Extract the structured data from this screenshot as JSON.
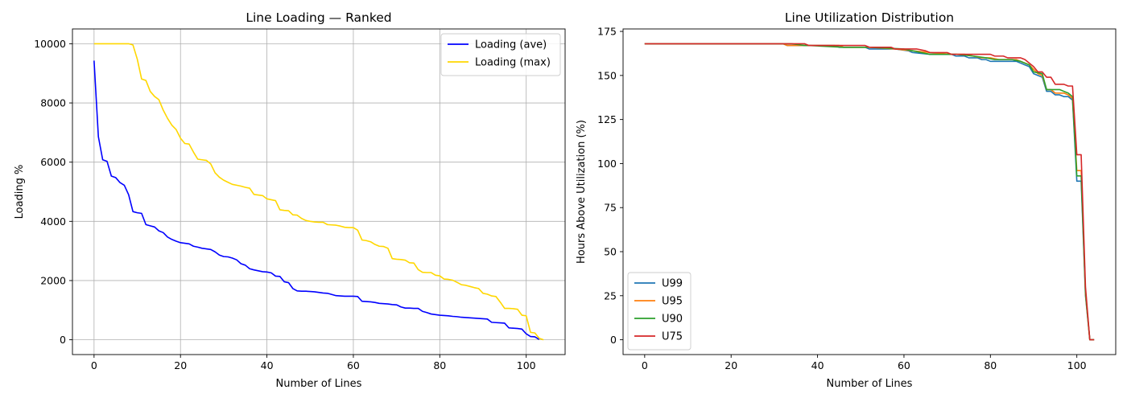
{
  "chart_data": [
    {
      "type": "line",
      "title": "Line Loading — Ranked",
      "xlabel": "Number of Lines",
      "ylabel": "Loading %",
      "xlim": [
        -5,
        109
      ],
      "ylim": [
        -500,
        10500
      ],
      "xticks": [
        0,
        20,
        40,
        60,
        80,
        100
      ],
      "yticks": [
        0,
        2000,
        4000,
        6000,
        8000,
        10000
      ],
      "grid": true,
      "legend_position": "top-right",
      "series": [
        {
          "name": "Loading (ave)",
          "color": "#0000ff",
          "x": [
            0,
            1,
            2,
            3,
            4,
            5,
            6,
            7,
            8,
            9,
            10,
            11,
            12,
            13,
            14,
            15,
            16,
            17,
            18,
            19,
            20,
            21,
            22,
            23,
            24,
            25,
            26,
            27,
            28,
            29,
            30,
            31,
            32,
            33,
            34,
            35,
            36,
            37,
            38,
            39,
            40,
            41,
            42,
            43,
            44,
            45,
            46,
            47,
            48,
            49,
            50,
            51,
            52,
            53,
            54,
            55,
            56,
            57,
            58,
            59,
            60,
            61,
            62,
            63,
            64,
            65,
            66,
            67,
            68,
            69,
            70,
            71,
            72,
            73,
            74,
            75,
            76,
            77,
            78,
            79,
            80,
            81,
            82,
            83,
            84,
            85,
            86,
            87,
            88,
            89,
            90,
            91,
            92,
            93,
            94,
            95,
            96,
            97,
            98,
            99,
            100,
            101,
            102,
            103
          ],
          "values": [
            9430,
            6860,
            6080,
            6030,
            5530,
            5480,
            5310,
            5220,
            4900,
            4330,
            4290,
            4270,
            3890,
            3850,
            3810,
            3680,
            3620,
            3470,
            3390,
            3330,
            3280,
            3260,
            3240,
            3160,
            3130,
            3090,
            3070,
            3050,
            2970,
            2860,
            2810,
            2800,
            2760,
            2700,
            2570,
            2520,
            2400,
            2360,
            2330,
            2300,
            2290,
            2260,
            2150,
            2140,
            1960,
            1930,
            1730,
            1650,
            1640,
            1640,
            1630,
            1620,
            1600,
            1580,
            1570,
            1530,
            1490,
            1480,
            1470,
            1470,
            1470,
            1460,
            1300,
            1290,
            1280,
            1260,
            1230,
            1220,
            1210,
            1190,
            1180,
            1110,
            1070,
            1070,
            1060,
            1060,
            960,
            920,
            870,
            850,
            830,
            820,
            810,
            790,
            780,
            760,
            750,
            740,
            730,
            720,
            710,
            700,
            590,
            580,
            570,
            560,
            400,
            390,
            380,
            360,
            200,
            110,
            100,
            10
          ]
        },
        {
          "name": "Loading (max)",
          "color": "#ffd700",
          "x": [
            0,
            1,
            2,
            3,
            4,
            5,
            6,
            7,
            8,
            9,
            10,
            11,
            12,
            13,
            14,
            15,
            16,
            17,
            18,
            19,
            20,
            21,
            22,
            23,
            24,
            25,
            26,
            27,
            28,
            29,
            30,
            31,
            32,
            33,
            34,
            35,
            36,
            37,
            38,
            39,
            40,
            41,
            42,
            43,
            44,
            45,
            46,
            47,
            48,
            49,
            50,
            51,
            52,
            53,
            54,
            55,
            56,
            57,
            58,
            59,
            60,
            61,
            62,
            63,
            64,
            65,
            66,
            67,
            68,
            69,
            70,
            71,
            72,
            73,
            74,
            75,
            76,
            77,
            78,
            79,
            80,
            81,
            82,
            83,
            84,
            85,
            86,
            87,
            88,
            89,
            90,
            91,
            92,
            93,
            94,
            95,
            96,
            97,
            98,
            99,
            100,
            101,
            102,
            103,
            104
          ],
          "values": [
            10000,
            10000,
            10000,
            10000,
            10000,
            10000,
            10000,
            10000,
            10000,
            9960,
            9480,
            8810,
            8760,
            8390,
            8220,
            8110,
            7760,
            7480,
            7250,
            7100,
            6810,
            6630,
            6610,
            6340,
            6100,
            6080,
            6060,
            5940,
            5640,
            5490,
            5390,
            5320,
            5250,
            5220,
            5190,
            5150,
            5120,
            4910,
            4890,
            4870,
            4760,
            4730,
            4700,
            4390,
            4370,
            4360,
            4220,
            4210,
            4100,
            4030,
            4000,
            3980,
            3970,
            3970,
            3890,
            3880,
            3870,
            3840,
            3800,
            3790,
            3790,
            3700,
            3370,
            3350,
            3310,
            3220,
            3160,
            3150,
            3090,
            2740,
            2720,
            2710,
            2690,
            2600,
            2590,
            2370,
            2280,
            2270,
            2270,
            2180,
            2160,
            2050,
            2040,
            2010,
            1940,
            1860,
            1840,
            1800,
            1760,
            1730,
            1570,
            1540,
            1480,
            1460,
            1270,
            1060,
            1060,
            1050,
            1030,
            830,
            810,
            250,
            230,
            50,
            0
          ]
        }
      ]
    },
    {
      "type": "line",
      "title": "Line Utilization Distribution",
      "xlabel": "Number of Lines",
      "ylabel": "Hours Above Utilization (%)",
      "xlim": [
        -5,
        109
      ],
      "ylim": [
        -8.4,
        176.4
      ],
      "xticks": [
        0,
        20,
        40,
        60,
        80,
        100
      ],
      "yticks": [
        0,
        25,
        50,
        75,
        100,
        125,
        150,
        175
      ],
      "grid": false,
      "legend_position": "bottom-left",
      "series": [
        {
          "name": "U99",
          "color": "#1f77b4",
          "x": [
            0,
            32,
            33,
            38,
            44,
            45,
            51,
            52,
            58,
            61,
            62,
            66,
            71,
            72,
            74,
            75,
            77,
            78,
            79,
            80,
            86,
            88,
            89,
            90,
            91,
            92,
            93,
            94,
            95,
            96,
            97,
            98,
            99,
            100,
            101,
            102,
            103,
            104
          ],
          "values": [
            168,
            168,
            167,
            167,
            167,
            166,
            166,
            165,
            165,
            164,
            163,
            162,
            162,
            161,
            161,
            160,
            160,
            159,
            159,
            158,
            158,
            156,
            155,
            151,
            150,
            149,
            141,
            141,
            139,
            139,
            138,
            138,
            136,
            90,
            90,
            25,
            0,
            0
          ]
        },
        {
          "name": "U95",
          "color": "#ff7f0e",
          "x": [
            0,
            32,
            33,
            38,
            45,
            46,
            52,
            58,
            62,
            66,
            71,
            74,
            76,
            78,
            80,
            82,
            86,
            88,
            89,
            91,
            92,
            93,
            94,
            95,
            97,
            98,
            99,
            100,
            101,
            102,
            103,
            104
          ],
          "values": [
            168,
            168,
            167,
            167,
            167,
            166,
            166,
            165,
            164,
            163,
            162,
            162,
            161,
            160,
            160,
            159,
            159,
            157,
            156,
            151,
            150,
            142,
            142,
            140,
            140,
            139,
            137,
            96,
            96,
            26,
            0,
            0
          ]
        },
        {
          "name": "U90",
          "color": "#2ca02c",
          "x": [
            0,
            34,
            37,
            38,
            46,
            48,
            52,
            60,
            62,
            66,
            72,
            76,
            79,
            81,
            85,
            87,
            89,
            90,
            92,
            93,
            96,
            97,
            98,
            99,
            100,
            101,
            102,
            103,
            104
          ],
          "values": [
            168,
            168,
            167,
            167,
            166,
            166,
            166,
            165,
            164,
            162,
            162,
            161,
            160,
            159,
            159,
            158,
            156,
            152,
            151,
            142,
            142,
            141,
            140,
            138,
            93,
            93,
            27,
            0,
            0
          ]
        },
        {
          "name": "U75",
          "color": "#d62728",
          "x": [
            0,
            31,
            32,
            37,
            38,
            51,
            52,
            57,
            58,
            62,
            63,
            65,
            66,
            70,
            71,
            80,
            81,
            83,
            84,
            87,
            88,
            89,
            90,
            91,
            92,
            93,
            94,
            95,
            96,
            97,
            98,
            99,
            100,
            101,
            102,
            103,
            104
          ],
          "values": [
            168,
            168,
            168,
            168,
            167,
            167,
            166,
            166,
            165,
            165,
            165,
            164,
            163,
            163,
            162,
            162,
            161,
            161,
            160,
            160,
            159,
            157,
            155,
            152,
            152,
            149,
            149,
            145,
            145,
            145,
            144,
            144,
            105,
            105,
            30,
            0,
            0
          ]
        }
      ]
    }
  ]
}
